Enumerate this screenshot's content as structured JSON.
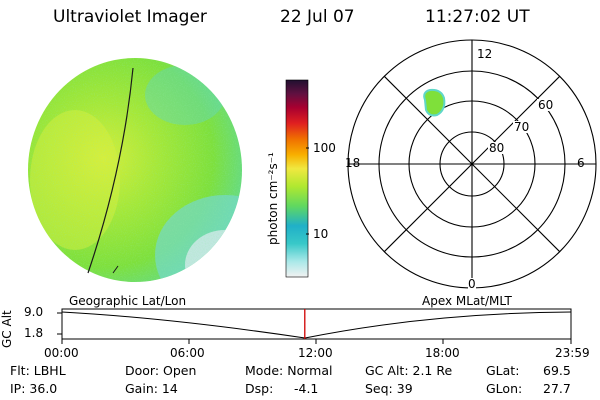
{
  "header": {
    "title": "Ultraviolet Imager",
    "date": "22 Jul 07",
    "time": "11:27:02 UT"
  },
  "colorbar": {
    "label": "photon cm⁻²s⁻¹",
    "ticks": [
      "100",
      "10"
    ]
  },
  "polar_plot": {
    "mlt_labels": [
      "12",
      "18",
      "6",
      "0"
    ],
    "lat_labels": [
      "60",
      "70",
      "80"
    ]
  },
  "timeline": {
    "ylabel": "GC Alt",
    "yticks": [
      "9.0",
      "1.8"
    ],
    "left_label": "Geographic Lat/Lon",
    "right_label": "Apex MLat/MLT",
    "xticks": [
      "00:00",
      "06:00",
      "12:00",
      "18:00",
      "23:59"
    ],
    "marker_time_fraction": 0.477
  },
  "info": {
    "flt": "Flt: LBHL",
    "ip": "IP: 36.0",
    "door": "Door: Open",
    "gain": "Gain: 14",
    "mode": "Mode: Normal",
    "dsp": "Dsp:",
    "dsp_value": "-4.1",
    "gc_alt": "GC Alt: 2.1 Re",
    "seq": "Seq: 39",
    "glat": "GLat:",
    "glat_value": "69.5",
    "glon": "GLon:",
    "glon_value": "27.7"
  },
  "colors": {
    "earth_green": "#7fe03a",
    "earth_yellow": "#c8ec3c",
    "earth_cyan": "#5fd7c8",
    "marker_red": "#d00000"
  }
}
